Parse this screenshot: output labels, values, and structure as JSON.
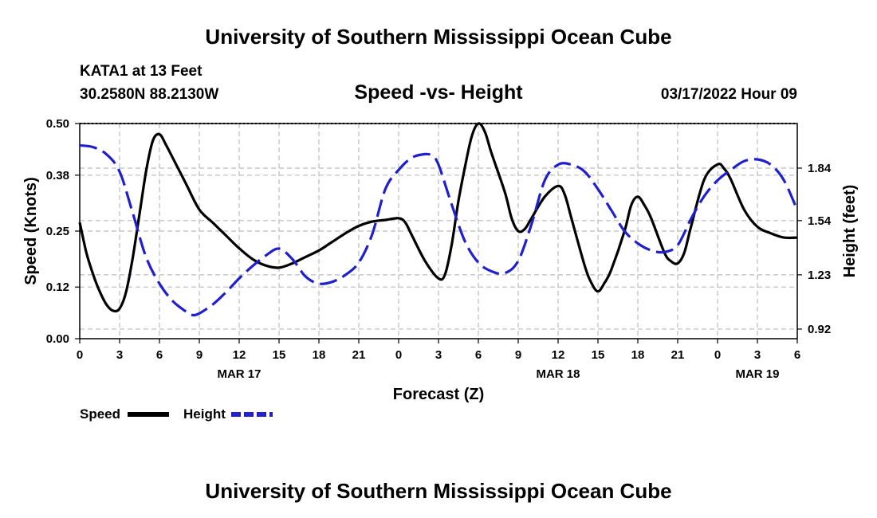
{
  "page": {
    "title_top": "University of Southern Mississippi Ocean Cube",
    "title_bottom": "University of Southern Mississippi Ocean Cube",
    "station": "KATA1 at 13 Feet",
    "coords": "30.2580N  88.2130W",
    "datetime": "03/17/2022 Hour 09"
  },
  "colors": {
    "speed": "#000000",
    "height": "#1f1fcc",
    "grid": "#bbbbbb"
  },
  "chart_data": {
    "type": "line",
    "title": "Speed -vs- Height",
    "xlabel": "Forecast (Z)",
    "ylabel": "Speed (Knots)",
    "y2label": "Height (feet)",
    "x_unit": "hours since MAR 17 00Z",
    "xlim": [
      0,
      54
    ],
    "ylim": [
      0,
      0.5
    ],
    "y2lim": [
      0.865,
      2.095
    ],
    "x_ticks": [
      0,
      3,
      6,
      9,
      12,
      15,
      18,
      21,
      24,
      27,
      30,
      33,
      36,
      39,
      42,
      45,
      48,
      51,
      54
    ],
    "x_tick_labels": [
      "0",
      "3",
      "6",
      "9",
      "12",
      "15",
      "18",
      "21",
      "0",
      "3",
      "6",
      "9",
      "12",
      "15",
      "18",
      "21",
      "0",
      "3",
      "6"
    ],
    "date_labels": [
      {
        "x": 12,
        "text": "MAR 17"
      },
      {
        "x": 36,
        "text": "MAR 18"
      },
      {
        "x": 51,
        "text": "MAR 19"
      }
    ],
    "y_ticks": [
      0.0,
      0.12,
      0.25,
      0.38,
      0.5
    ],
    "y_tick_labels": [
      "0.00",
      "0.12",
      "0.25",
      "0.38",
      "0.50"
    ],
    "y2_ticks": [
      0.92,
      1.23,
      1.54,
      1.84
    ],
    "y2_tick_labels": [
      "0.92",
      "1.23",
      "1.54",
      "1.84"
    ],
    "legend": [
      {
        "name": "Speed",
        "style": "solid"
      },
      {
        "name": "Height",
        "style": "dashed"
      }
    ],
    "series": [
      {
        "name": "Speed",
        "axis": "left",
        "x": [
          0,
          0.5,
          1,
          1.5,
          2,
          2.5,
          3,
          3.5,
          4,
          4.5,
          5,
          5.5,
          6,
          6.5,
          7,
          8,
          9,
          10,
          11,
          12,
          13,
          14,
          15,
          16,
          17,
          18,
          19,
          20,
          21,
          22,
          23,
          24,
          24.5,
          25,
          26,
          27,
          27.5,
          28,
          28.5,
          29,
          29.5,
          30,
          30.5,
          31,
          32,
          32.5,
          33,
          33.5,
          34,
          35,
          36,
          36.5,
          37,
          38,
          38.5,
          39,
          39.5,
          40,
          41,
          41.5,
          42,
          42.5,
          43,
          44,
          44.5,
          45,
          45.5,
          46,
          47,
          48,
          48.5,
          49,
          50,
          51,
          52,
          53,
          54
        ],
        "values": [
          0.27,
          0.2,
          0.15,
          0.11,
          0.08,
          0.065,
          0.07,
          0.11,
          0.19,
          0.29,
          0.39,
          0.46,
          0.475,
          0.45,
          0.42,
          0.36,
          0.3,
          0.27,
          0.24,
          0.21,
          0.185,
          0.17,
          0.165,
          0.175,
          0.19,
          0.205,
          0.225,
          0.245,
          0.262,
          0.272,
          0.276,
          0.28,
          0.27,
          0.24,
          0.18,
          0.14,
          0.15,
          0.22,
          0.32,
          0.4,
          0.47,
          0.5,
          0.48,
          0.43,
          0.34,
          0.28,
          0.25,
          0.255,
          0.28,
          0.33,
          0.355,
          0.335,
          0.28,
          0.17,
          0.13,
          0.11,
          0.13,
          0.16,
          0.25,
          0.31,
          0.33,
          0.31,
          0.28,
          0.2,
          0.18,
          0.175,
          0.2,
          0.26,
          0.37,
          0.405,
          0.395,
          0.37,
          0.3,
          0.26,
          0.245,
          0.235,
          0.235
        ]
      },
      {
        "name": "Height",
        "axis": "right",
        "x": [
          0,
          1,
          2,
          3,
          4,
          5,
          6,
          7,
          8,
          8.5,
          9,
          10,
          11,
          12,
          13,
          14,
          15,
          16,
          17,
          18,
          19,
          20,
          21,
          22,
          23,
          24,
          25,
          26,
          26.5,
          27,
          28,
          29,
          30,
          31,
          32,
          33,
          34,
          35,
          36,
          37,
          38,
          39,
          40,
          41,
          42,
          43,
          44,
          45,
          46,
          47,
          48,
          49,
          50,
          51,
          52,
          53,
          54
        ],
        "values": [
          1.97,
          1.96,
          1.92,
          1.82,
          1.58,
          1.33,
          1.18,
          1.08,
          1.02,
          1.0,
          1.01,
          1.06,
          1.13,
          1.21,
          1.28,
          1.34,
          1.38,
          1.32,
          1.22,
          1.18,
          1.19,
          1.23,
          1.3,
          1.46,
          1.72,
          1.83,
          1.9,
          1.92,
          1.91,
          1.86,
          1.63,
          1.42,
          1.3,
          1.25,
          1.24,
          1.31,
          1.52,
          1.77,
          1.86,
          1.86,
          1.82,
          1.72,
          1.6,
          1.48,
          1.41,
          1.37,
          1.36,
          1.4,
          1.55,
          1.68,
          1.77,
          1.83,
          1.88,
          1.89,
          1.86,
          1.77,
          1.6
        ]
      }
    ]
  }
}
